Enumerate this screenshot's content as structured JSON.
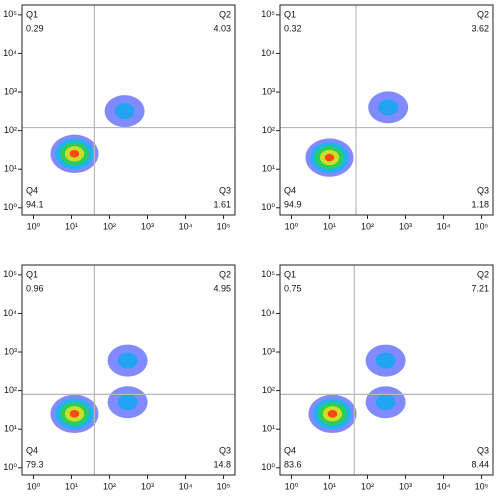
{
  "chart_data": [
    {
      "type": "scatter",
      "xscale": "log",
      "yscale": "log",
      "xlim": [
        0.5,
        200000
      ],
      "ylim": [
        0.65,
        180000
      ],
      "xticks": [
        {
          "value": 1,
          "label": "10⁰"
        },
        {
          "value": 10,
          "label": "10¹"
        },
        {
          "value": 100,
          "label": "10²"
        },
        {
          "value": 1000,
          "label": "10³"
        },
        {
          "value": 10000,
          "label": "10⁴"
        },
        {
          "value": 100000,
          "label": "10⁵"
        }
      ],
      "yticks": [
        {
          "value": 1,
          "label": "10⁰"
        },
        {
          "value": 10,
          "label": "10¹"
        },
        {
          "value": 100,
          "label": "10²"
        },
        {
          "value": 1000,
          "label": "10³"
        },
        {
          "value": 10000,
          "label": "10⁴"
        },
        {
          "value": 100000,
          "label": "10⁵"
        }
      ],
      "gate": {
        "x": 40,
        "y": 120
      },
      "quadrants": [
        {
          "name": "Q1",
          "value": 0.29
        },
        {
          "name": "Q2",
          "value": 4.03
        },
        {
          "name": "Q3",
          "value": 1.61
        },
        {
          "name": "Q4",
          "value": 94.1
        }
      ],
      "clusters": {
        "x": [
          12,
          250
        ],
        "y": [
          25,
          320
        ]
      }
    },
    {
      "type": "scatter",
      "xscale": "log",
      "yscale": "log",
      "xlim": [
        0.5,
        200000
      ],
      "ylim": [
        0.65,
        180000
      ],
      "xticks": [
        {
          "value": 1,
          "label": "10⁰"
        },
        {
          "value": 10,
          "label": "10¹"
        },
        {
          "value": 100,
          "label": "10²"
        },
        {
          "value": 1000,
          "label": "10³"
        },
        {
          "value": 10000,
          "label": "10⁴"
        },
        {
          "value": 100000,
          "label": "10⁵"
        }
      ],
      "yticks": [
        {
          "value": 1,
          "label": "10⁰"
        },
        {
          "value": 10,
          "label": "10¹"
        },
        {
          "value": 100,
          "label": "10²"
        },
        {
          "value": 1000,
          "label": "10³"
        },
        {
          "value": 10000,
          "label": "10⁴"
        },
        {
          "value": 100000,
          "label": "10⁵"
        }
      ],
      "gate": {
        "x": 50,
        "y": 120
      },
      "quadrants": [
        {
          "name": "Q1",
          "value": 0.32
        },
        {
          "name": "Q2",
          "value": 3.62
        },
        {
          "name": "Q3",
          "value": 1.18
        },
        {
          "name": "Q4",
          "value": 94.9
        }
      ],
      "clusters": {
        "x": [
          10,
          350
        ],
        "y": [
          20,
          400
        ]
      }
    },
    {
      "type": "scatter",
      "xscale": "log",
      "yscale": "log",
      "xlim": [
        0.5,
        200000
      ],
      "ylim": [
        0.65,
        180000
      ],
      "xticks": [
        {
          "value": 1,
          "label": "10⁰"
        },
        {
          "value": 10,
          "label": "10¹"
        },
        {
          "value": 100,
          "label": "10²"
        },
        {
          "value": 1000,
          "label": "10³"
        },
        {
          "value": 10000,
          "label": "10⁴"
        },
        {
          "value": 100000,
          "label": "10⁵"
        }
      ],
      "yticks": [
        {
          "value": 1,
          "label": "10⁰"
        },
        {
          "value": 10,
          "label": "10¹"
        },
        {
          "value": 100,
          "label": "10²"
        },
        {
          "value": 1000,
          "label": "10³"
        },
        {
          "value": 10000,
          "label": "10⁴"
        },
        {
          "value": 100000,
          "label": "10⁵"
        }
      ],
      "gate": {
        "x": 40,
        "y": 80
      },
      "quadrants": [
        {
          "name": "Q1",
          "value": 0.96
        },
        {
          "name": "Q2",
          "value": 4.95
        },
        {
          "name": "Q3",
          "value": 14.8
        },
        {
          "name": "Q4",
          "value": 79.3
        }
      ],
      "clusters": {
        "x": [
          12,
          300,
          300
        ],
        "y": [
          25,
          50,
          600
        ]
      }
    },
    {
      "type": "scatter",
      "xscale": "log",
      "yscale": "log",
      "xlim": [
        0.5,
        200000
      ],
      "ylim": [
        0.65,
        180000
      ],
      "xticks": [
        {
          "value": 1,
          "label": "10⁰"
        },
        {
          "value": 10,
          "label": "10¹"
        },
        {
          "value": 100,
          "label": "10²"
        },
        {
          "value": 1000,
          "label": "10³"
        },
        {
          "value": 10000,
          "label": "10⁴"
        },
        {
          "value": 100000,
          "label": "10⁵"
        }
      ],
      "yticks": [
        {
          "value": 1,
          "label": "10⁰"
        },
        {
          "value": 10,
          "label": "10¹"
        },
        {
          "value": 100,
          "label": "10²"
        },
        {
          "value": 1000,
          "label": "10³"
        },
        {
          "value": 10000,
          "label": "10⁴"
        },
        {
          "value": 100000,
          "label": "10⁵"
        }
      ],
      "gate": {
        "x": 45,
        "y": 80
      },
      "quadrants": [
        {
          "name": "Q1",
          "value": 0.75
        },
        {
          "name": "Q2",
          "value": 7.21
        },
        {
          "name": "Q3",
          "value": 8.44
        },
        {
          "name": "Q4",
          "value": 83.6
        }
      ],
      "clusters": {
        "x": [
          12,
          300,
          300
        ],
        "y": [
          25,
          600,
          50
        ]
      }
    }
  ]
}
